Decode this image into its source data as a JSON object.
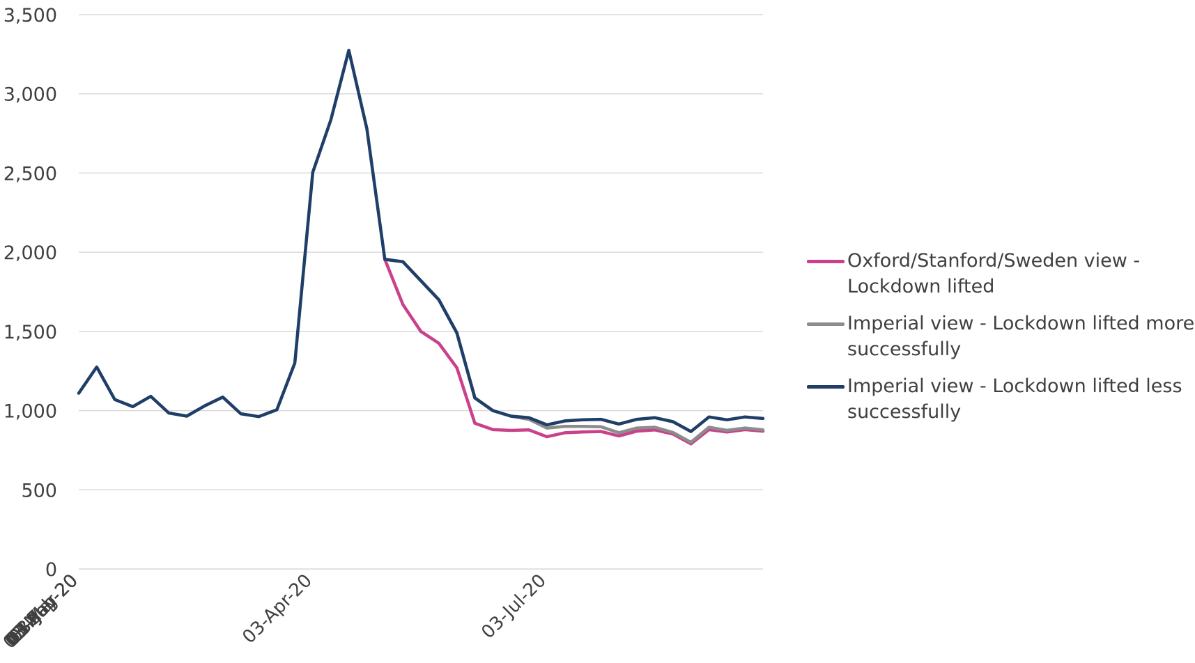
{
  "chart_data": {
    "type": "line",
    "title": "",
    "xlabel": "",
    "ylabel": "",
    "ylim": [
      0,
      3500
    ],
    "yticks": [
      0,
      500,
      1000,
      1500,
      2000,
      2500,
      3000,
      3500
    ],
    "ytick_labels": [
      "0",
      "500",
      "1,000",
      "1,500",
      "2,000",
      "2,500",
      "3,000",
      "3,500"
    ],
    "x_tick_labels": [
      "03-Jan-20",
      "03-Feb-20",
      "03-Mar-20",
      "03-Apr-20",
      "03-May-20",
      "03-Jun-20",
      "03-Jul-20",
      "03-Aug-20",
      "03-Sep-20"
    ],
    "x": [
      "03-Jan-20",
      "10-Jan-20",
      "17-Jan-20",
      "24-Jan-20",
      "31-Jan-20",
      "07-Feb-20",
      "14-Feb-20",
      "21-Feb-20",
      "28-Feb-20",
      "06-Mar-20",
      "13-Mar-20",
      "20-Mar-20",
      "27-Mar-20",
      "03-Apr-20",
      "10-Apr-20",
      "17-Apr-20",
      "24-Apr-20",
      "01-May-20",
      "08-May-20",
      "15-May-20",
      "22-May-20",
      "29-May-20",
      "05-Jun-20",
      "12-Jun-20",
      "19-Jun-20",
      "26-Jun-20",
      "03-Jul-20",
      "10-Jul-20",
      "17-Jul-20",
      "24-Jul-20",
      "31-Jul-20",
      "07-Aug-20",
      "14-Aug-20",
      "21-Aug-20",
      "28-Aug-20",
      "04-Sep-20",
      "11-Sep-20",
      "18-Sep-20",
      "25-Sep-20"
    ],
    "grid": true,
    "legend_position": "right",
    "series": [
      {
        "name": "Oxford/Stanford/Sweden view - Lockdown lifted",
        "color": "#C9418B",
        "values": [
          null,
          null,
          null,
          null,
          null,
          null,
          null,
          null,
          null,
          null,
          null,
          null,
          null,
          null,
          null,
          null,
          null,
          1955,
          1670,
          1500,
          1425,
          1270,
          920,
          880,
          875,
          878,
          835,
          860,
          865,
          868,
          840,
          870,
          878,
          852,
          790,
          880,
          865,
          880,
          870
        ]
      },
      {
        "name": "Imperial view - Lockdown lifted more successfully",
        "color": "#8C8C8C",
        "values": [
          null,
          null,
          null,
          null,
          null,
          null,
          null,
          null,
          null,
          null,
          null,
          null,
          null,
          null,
          null,
          null,
          null,
          1955,
          1940,
          1820,
          1700,
          1490,
          1080,
          1000,
          965,
          945,
          890,
          900,
          900,
          898,
          860,
          890,
          895,
          862,
          800,
          895,
          875,
          890,
          878
        ]
      },
      {
        "name": "Imperial view - Lockdown lifted less successfully",
        "color": "#1F3E68",
        "values": [
          1110,
          1275,
          1070,
          1025,
          1090,
          985,
          965,
          1030,
          1085,
          980,
          962,
          1005,
          1300,
          2505,
          2835,
          3275,
          2780,
          1955,
          1940,
          1820,
          1700,
          1490,
          1080,
          1000,
          965,
          955,
          910,
          935,
          942,
          945,
          915,
          945,
          955,
          930,
          868,
          960,
          942,
          960,
          950
        ]
      }
    ]
  }
}
